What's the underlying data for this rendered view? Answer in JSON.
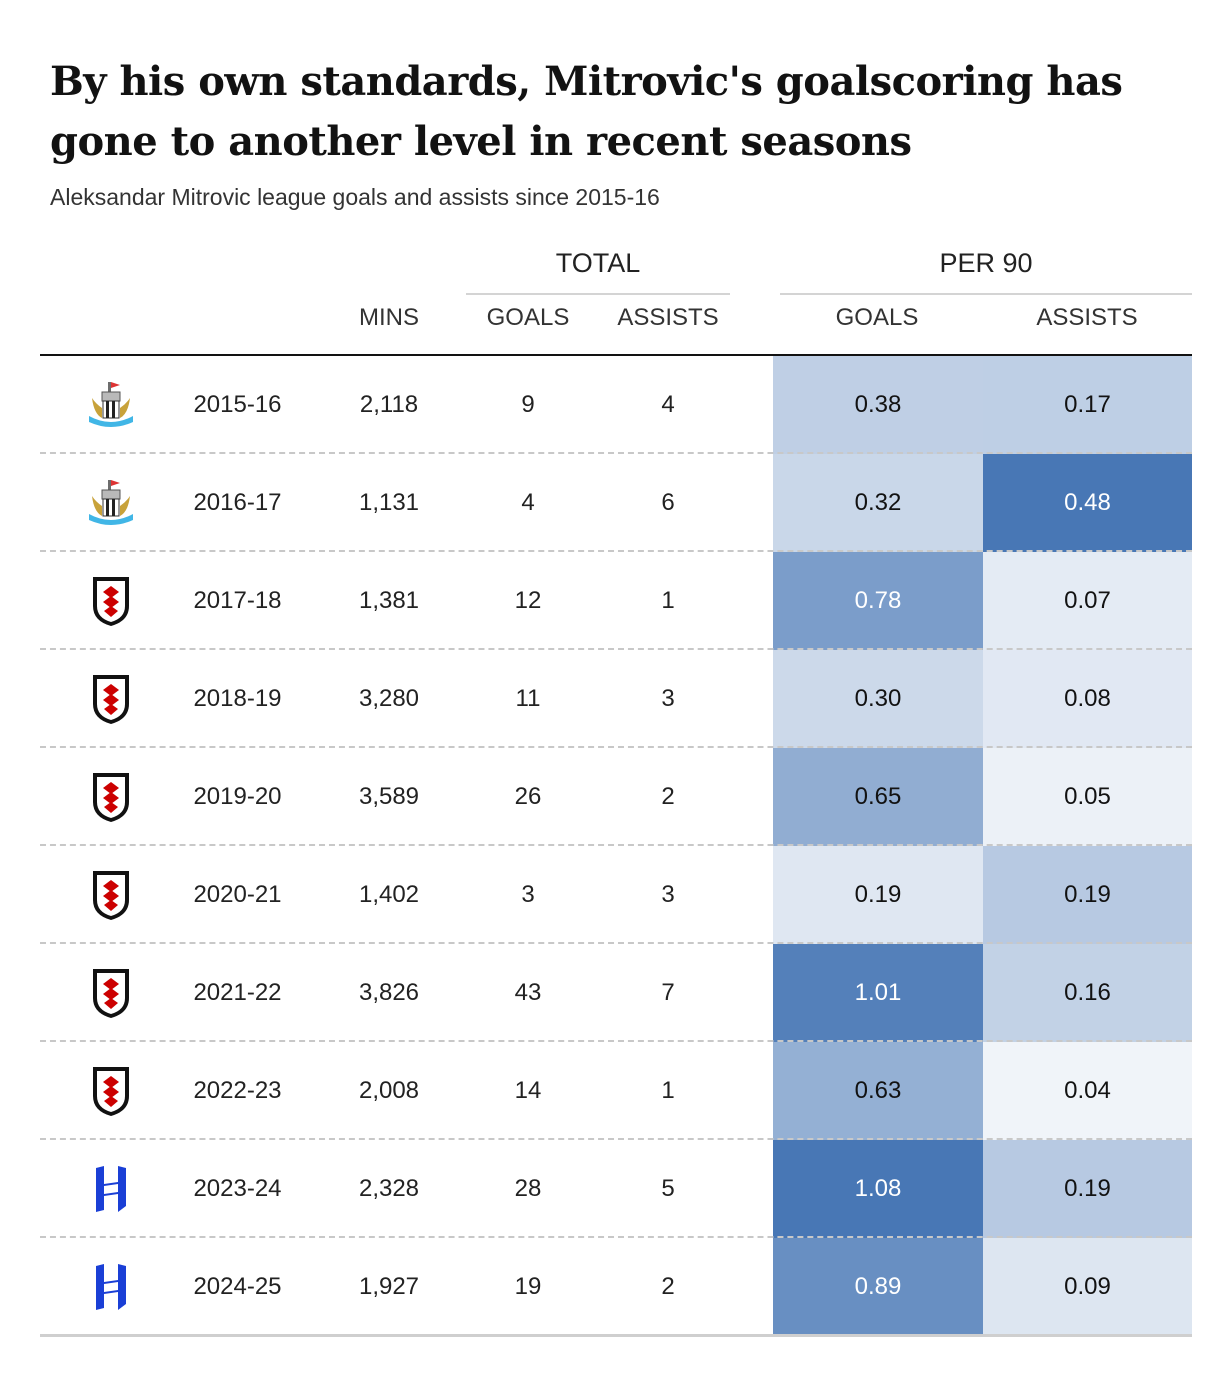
{
  "title": "By his own standards, Mitrovic's goalscoring has gone to another level in recent seasons",
  "subtitle": "Aleksandar Mitrovic league goals and assists since 2015-16",
  "header": {
    "total_group": "TOTAL",
    "per90_group": "PER 90",
    "columns": [
      "MINS",
      "GOALS",
      "ASSISTS",
      "GOALS",
      "ASSISTS"
    ]
  },
  "colors": {
    "heat_low": "#ffffff",
    "heat_high": "#4877b5",
    "text_dark": "#121212",
    "text_light": "#ffffff",
    "newcastle": "#41b6e6",
    "fulham": "#cc0000",
    "al_hilal": "#1a3fd6"
  },
  "chart_data": {
    "type": "table",
    "title": "By his own standards, Mitrovic's goalscoring has gone to another level in recent seasons",
    "subtitle": "Aleksandar Mitrovic league goals and assists since 2015-16",
    "column_groups": [
      {
        "name": "TOTAL",
        "columns": [
          "GOALS",
          "ASSISTS"
        ]
      },
      {
        "name": "PER 90",
        "columns": [
          "GOALS",
          "ASSISTS"
        ]
      }
    ],
    "columns": [
      "MINS",
      "GOALS",
      "ASSISTS",
      "GOALS",
      "ASSISTS"
    ],
    "rows": [
      {
        "club_icon": "newcastle-crest-icon",
        "season": "2015-16",
        "mins": "2,118",
        "goals": "9",
        "assists": "4",
        "goals_p90": "0.38",
        "assists_p90": "0.17"
      },
      {
        "club_icon": "newcastle-crest-icon",
        "season": "2016-17",
        "mins": "1,131",
        "goals": "4",
        "assists": "6",
        "goals_p90": "0.32",
        "assists_p90": "0.48"
      },
      {
        "club_icon": "fulham-crest-icon",
        "season": "2017-18",
        "mins": "1,381",
        "goals": "12",
        "assists": "1",
        "goals_p90": "0.78",
        "assists_p90": "0.07"
      },
      {
        "club_icon": "fulham-crest-icon",
        "season": "2018-19",
        "mins": "3,280",
        "goals": "11",
        "assists": "3",
        "goals_p90": "0.30",
        "assists_p90": "0.08"
      },
      {
        "club_icon": "fulham-crest-icon",
        "season": "2019-20",
        "mins": "3,589",
        "goals": "26",
        "assists": "2",
        "goals_p90": "0.65",
        "assists_p90": "0.05"
      },
      {
        "club_icon": "fulham-crest-icon",
        "season": "2020-21",
        "mins": "1,402",
        "goals": "3",
        "assists": "3",
        "goals_p90": "0.19",
        "assists_p90": "0.19"
      },
      {
        "club_icon": "fulham-crest-icon",
        "season": "2021-22",
        "mins": "3,826",
        "goals": "43",
        "assists": "7",
        "goals_p90": "1.01",
        "assists_p90": "0.16"
      },
      {
        "club_icon": "fulham-crest-icon",
        "season": "2022-23",
        "mins": "2,008",
        "goals": "14",
        "assists": "1",
        "goals_p90": "0.63",
        "assists_p90": "0.04"
      },
      {
        "club_icon": "al-hilal-crest-icon",
        "season": "2023-24",
        "mins": "2,328",
        "goals": "28",
        "assists": "5",
        "goals_p90": "1.08",
        "assists_p90": "0.19"
      },
      {
        "club_icon": "al-hilal-crest-icon",
        "season": "2024-25",
        "mins": "1,927",
        "goals": "19",
        "assists": "2",
        "goals_p90": "0.89",
        "assists_p90": "0.09"
      }
    ]
  }
}
